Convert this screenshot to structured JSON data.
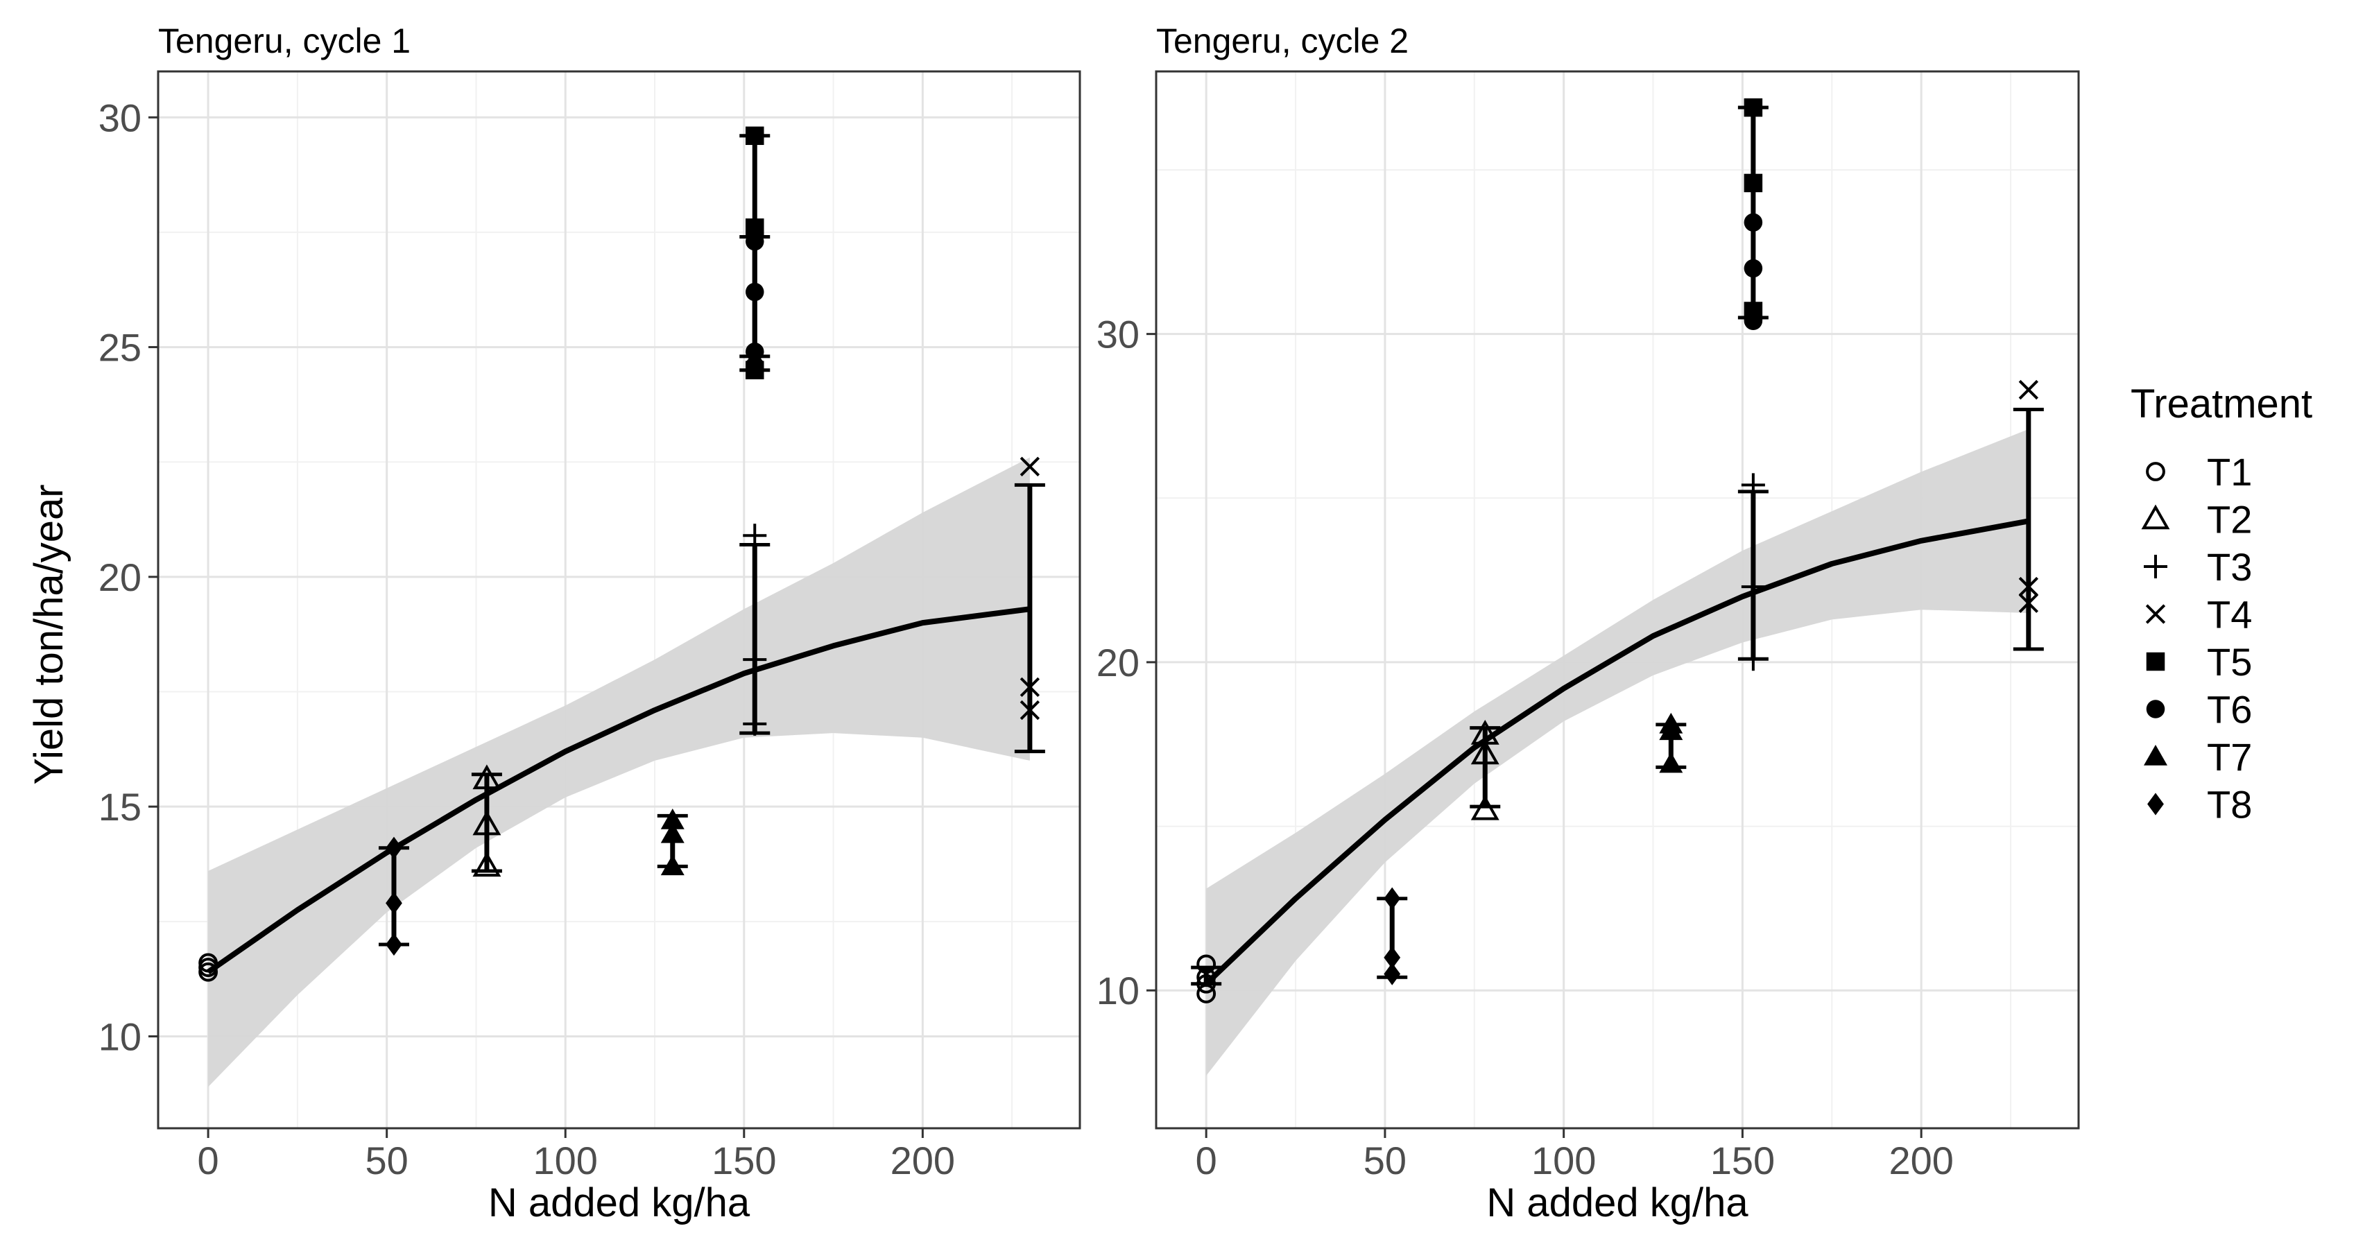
{
  "figure": {
    "ylabel": "Yield ton/ha/year",
    "legend_title": "Treatment"
  },
  "chart_data": [
    {
      "type": "scatter",
      "title": "Tengeru, cycle 1",
      "xlabel": "N added kg/ha",
      "ylabel": "Yield ton/ha/year",
      "xlim": [
        -14,
        244
      ],
      "ylim": [
        8.0,
        31.0
      ],
      "xticks": [
        0,
        50,
        100,
        150,
        200
      ],
      "yticks": [
        10,
        15,
        20,
        25,
        30
      ],
      "grid": true,
      "fit_curve": {
        "x": [
          0,
          25,
          50,
          75,
          100,
          125,
          150,
          175,
          200,
          230
        ],
        "y": [
          11.4,
          12.75,
          14.0,
          15.15,
          16.2,
          17.1,
          17.9,
          18.5,
          19.0,
          19.3
        ],
        "ci_lower": [
          8.9,
          10.9,
          12.7,
          14.1,
          15.2,
          16.0,
          16.5,
          16.6,
          16.5,
          16.0
        ],
        "ci_upper": [
          13.6,
          14.5,
          15.4,
          16.3,
          17.2,
          18.2,
          19.3,
          20.3,
          21.4,
          22.6
        ]
      },
      "error_bars": [
        {
          "treatment": "T3",
          "x": 153,
          "low": 16.6,
          "high": 20.7,
          "mean": 18.5
        },
        {
          "treatment": "T4",
          "x": 230,
          "low": 16.2,
          "high": 22.0,
          "mean": 19.0
        },
        {
          "treatment": "T5",
          "x": 153,
          "low": 24.5,
          "high": 29.6,
          "mean": 26.9
        },
        {
          "treatment": "T6",
          "x": 153,
          "low": 24.8,
          "high": 27.4,
          "mean": 26.1
        },
        {
          "treatment": "T8",
          "x": 52,
          "low": 12.0,
          "high": 14.1,
          "mean": 13.0
        },
        {
          "treatment": "T7",
          "x": 130,
          "low": 13.7,
          "high": 14.8,
          "mean": 14.2
        },
        {
          "treatment": "T2",
          "x": 78,
          "low": 13.6,
          "high": 15.7,
          "mean": 14.7
        }
      ],
      "series": [
        {
          "name": "T1",
          "shape": "circle-open",
          "x": [
            0,
            0,
            0
          ],
          "y": [
            11.4,
            11.5,
            11.6
          ]
        },
        {
          "name": "T2",
          "shape": "triangle-open",
          "x": [
            78,
            78,
            78
          ],
          "y": [
            15.6,
            14.6,
            13.7
          ]
        },
        {
          "name": "T3",
          "shape": "plus",
          "x": [
            153,
            153,
            153
          ],
          "y": [
            20.9,
            18.2,
            16.8
          ]
        },
        {
          "name": "T4",
          "shape": "cross",
          "x": [
            230,
            230,
            230
          ],
          "y": [
            22.4,
            17.6,
            17.1
          ]
        },
        {
          "name": "T5",
          "shape": "square",
          "x": [
            153,
            153,
            153
          ],
          "y": [
            29.6,
            27.6,
            24.5
          ]
        },
        {
          "name": "T6",
          "shape": "circle",
          "x": [
            153,
            153,
            153,
            153
          ],
          "y": [
            27.3,
            26.2,
            24.9,
            24.6
          ]
        },
        {
          "name": "T7",
          "shape": "triangle",
          "x": [
            130,
            130,
            130
          ],
          "y": [
            14.7,
            14.4,
            13.7
          ]
        },
        {
          "name": "T8",
          "shape": "diamond",
          "x": [
            52,
            52,
            52
          ],
          "y": [
            14.1,
            12.9,
            12.0
          ]
        }
      ]
    },
    {
      "type": "scatter",
      "title": "Tengeru, cycle 2",
      "xlabel": "N added kg/ha",
      "ylabel": "Yield ton/ha/year",
      "xlim": [
        -14,
        244
      ],
      "ylim": [
        5.8,
        38.0
      ],
      "xticks": [
        0,
        50,
        100,
        150,
        200
      ],
      "yticks": [
        10,
        20,
        30
      ],
      "grid": true,
      "fit_curve": {
        "x": [
          0,
          25,
          50,
          75,
          100,
          125,
          150,
          175,
          200,
          230
        ],
        "y": [
          10.2,
          12.8,
          15.2,
          17.4,
          19.2,
          20.8,
          22.0,
          23.0,
          23.7,
          24.3
        ],
        "ci_lower": [
          7.4,
          10.9,
          13.9,
          16.3,
          18.2,
          19.6,
          20.6,
          21.3,
          21.6,
          21.5
        ],
        "ci_upper": [
          13.1,
          14.8,
          16.6,
          18.5,
          20.2,
          21.9,
          23.4,
          24.6,
          25.8,
          27.1
        ]
      },
      "error_bars": [
        {
          "treatment": "T1",
          "x": 0,
          "low": 10.2,
          "high": 10.7,
          "mean": 10.4
        },
        {
          "treatment": "T2",
          "x": 78,
          "low": 15.6,
          "high": 18.0,
          "mean": 16.8
        },
        {
          "treatment": "T3",
          "x": 153,
          "low": 20.1,
          "high": 25.2,
          "mean": 22.6
        },
        {
          "treatment": "T4",
          "x": 230,
          "low": 20.4,
          "high": 27.7,
          "mean": 24.0
        },
        {
          "treatment": "T5",
          "x": 153,
          "low": 30.5,
          "high": 36.9,
          "mean": 33.7
        },
        {
          "treatment": "T7",
          "x": 130,
          "low": 16.8,
          "high": 18.1,
          "mean": 17.4
        },
        {
          "treatment": "T8",
          "x": 52,
          "low": 10.4,
          "high": 12.8,
          "mean": 11.4
        }
      ],
      "series": [
        {
          "name": "T1",
          "shape": "circle-open",
          "x": [
            0,
            0,
            0,
            0
          ],
          "y": [
            10.8,
            10.4,
            10.2,
            9.9
          ]
        },
        {
          "name": "T2",
          "shape": "triangle-open",
          "x": [
            78,
            78,
            78
          ],
          "y": [
            17.8,
            17.2,
            15.5
          ]
        },
        {
          "name": "T3",
          "shape": "plus",
          "x": [
            153,
            153,
            153
          ],
          "y": [
            25.4,
            22.3,
            20.1
          ]
        },
        {
          "name": "T4",
          "shape": "cross",
          "x": [
            230,
            230,
            230
          ],
          "y": [
            28.3,
            22.3,
            21.8
          ]
        },
        {
          "name": "T5",
          "shape": "square",
          "x": [
            153,
            153,
            153
          ],
          "y": [
            36.9,
            34.6,
            30.7
          ]
        },
        {
          "name": "T6",
          "shape": "circle",
          "x": [
            153,
            153,
            153
          ],
          "y": [
            33.4,
            32.0,
            30.4
          ]
        },
        {
          "name": "T7",
          "shape": "triangle",
          "x": [
            130,
            130,
            130
          ],
          "y": [
            18.1,
            17.9,
            16.9
          ]
        },
        {
          "name": "T8",
          "shape": "diamond",
          "x": [
            52,
            52,
            52
          ],
          "y": [
            12.8,
            11.0,
            10.5
          ]
        }
      ]
    }
  ],
  "legend": {
    "title": "Treatment",
    "items": [
      {
        "label": "T1",
        "shape": "circle-open"
      },
      {
        "label": "T2",
        "shape": "triangle-open"
      },
      {
        "label": "T3",
        "shape": "plus"
      },
      {
        "label": "T4",
        "shape": "cross"
      },
      {
        "label": "T5",
        "shape": "square"
      },
      {
        "label": "T6",
        "shape": "circle"
      },
      {
        "label": "T7",
        "shape": "triangle"
      },
      {
        "label": "T8",
        "shape": "diamond"
      }
    ]
  }
}
